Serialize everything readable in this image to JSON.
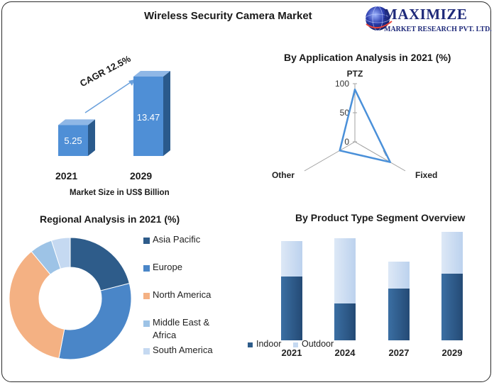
{
  "page_title": "Wireless Security Camera Market",
  "logo": {
    "name": "MAXIMIZE",
    "tagline": "MARKET RESEARCH PVT. LTD."
  },
  "colors": {
    "dark_blue": "#2e5c8a",
    "medium_blue": "#4a86c8",
    "orange": "#f4b183",
    "light_blue": "#9dc3e6",
    "pale_blue": "#c5d9f1",
    "radar_line": "#4a90d9",
    "bar3d_front": "#4f8fd6",
    "bar3d_side": "#2a5a8c",
    "bar3d_top": "#8fb7e6"
  },
  "chart_data": [
    {
      "type": "bar",
      "title": "",
      "categories": [
        "2021",
        "2029"
      ],
      "values": [
        5.25,
        13.47
      ],
      "xlabel": "Market Size in US$ Billion",
      "annotation": "CAGR 12.5%"
    },
    {
      "type": "radar",
      "title": "By Application Analysis in 2021 (%)",
      "axes": [
        "PTZ",
        "Fixed",
        "Other"
      ],
      "values": [
        90,
        70,
        30
      ],
      "r_ticks": [
        "0",
        "50",
        "100"
      ],
      "r_range": [
        0,
        100
      ]
    },
    {
      "type": "pie",
      "title": "Regional Analysis in 2021 (%)",
      "donut": true,
      "labels": [
        "Asia Pacific",
        "Europe",
        "North America",
        "Middle East & Africa",
        "South America"
      ],
      "legend_labels": [
        "Asia Pacific",
        "Europe",
        "North America",
        "Middle East &",
        "Africa",
        "South America"
      ],
      "values": [
        21,
        32,
        36,
        6,
        5
      ],
      "legend_position": "right"
    },
    {
      "type": "bar",
      "stacked": true,
      "title": "By Product Type Segment Overview",
      "categories": [
        "2021",
        "2024",
        "2027",
        "2029"
      ],
      "series": [
        {
          "name": "Indoor",
          "values": [
            90,
            52,
            73,
            94
          ]
        },
        {
          "name": "Outdoor",
          "values": [
            50,
            92,
            38,
            59
          ]
        }
      ],
      "legend_position": "bottom-left"
    }
  ]
}
